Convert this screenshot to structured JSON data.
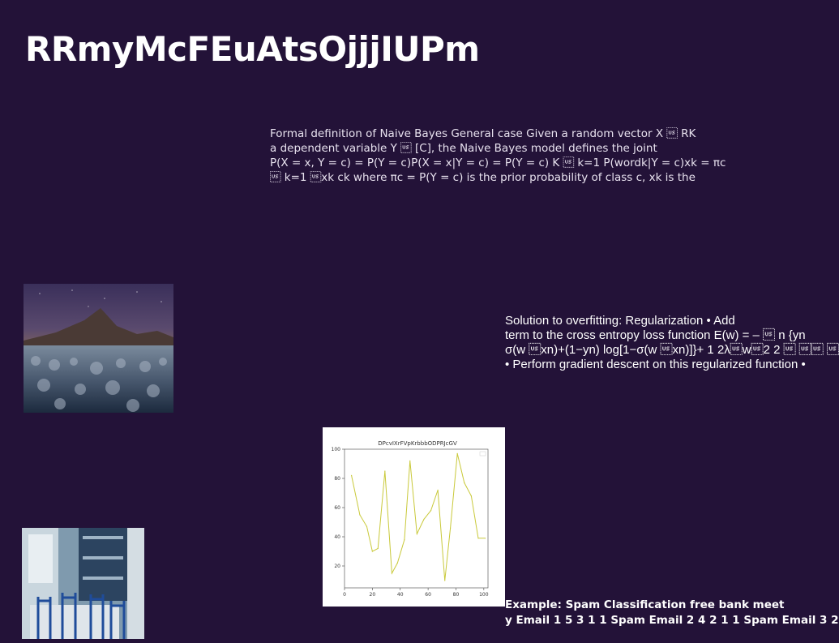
{
  "page": {
    "title": "RRmyMcFEuAtsOjjjIUPm"
  },
  "blocks": {
    "naive_bayes_lines": [
      "Formal definition of Naive Bayes General case Given a random vector X \u001f RK",
      "a dependent variable Y \u001f [C], the Naive Bayes model defines the joint",
      "P(X = x, Y = c) = P(Y = c)P(X = x|Y = c) = P(Y = c) K \u001f k=1 P(wordk|Y = c)xk = πc",
      "\u001f k=1 \u001fxk ck where πc = P(Y = c) is the prior probability of class c, xk is the"
    ],
    "regularization_lines": [
      "Solution to overfitting: Regularization • Add",
      "term to the cross entropy loss function E(w) = – \u001f n {yn",
      "σ(w \u001fxn)+(1−yn) log[1−σ(w \u001fxn)]}+ 1 2λ\u001fw\u001f2 2 \u001f \u001f\u001f \u001f",
      "• Perform gradient descent on this regularized function •"
    ],
    "spam_lines": [
      "Example: Spam Classification free bank meet",
      "y Email 1 5 3 1 1 Spam Email 2 4 2 1 1 Spam Email 3 2"
    ]
  },
  "images": {
    "mountain": "night-sky-mountain-forest-photo",
    "kitchen": "blue-chairs-kitchen-photo"
  },
  "chart_data": {
    "type": "line",
    "title": "DPcvIXrFVpKrbbbODPRJcGV",
    "x": [
      5,
      11,
      16,
      20,
      24,
      29,
      34,
      38,
      43,
      47,
      52,
      57,
      62,
      67,
      72,
      76,
      81,
      86,
      91,
      96,
      101
    ],
    "series": [
      {
        "values": [
          82,
          55,
          47,
          30,
          32,
          85,
          15,
          22,
          38,
          92,
          42,
          52,
          58,
          72,
          10,
          46,
          97,
          77,
          68,
          39,
          39
        ],
        "color": "#c9c93a"
      }
    ],
    "x_ticks": [
      "0",
      "20",
      "40",
      "60",
      "80",
      "100"
    ],
    "y_ticks": [
      "20",
      "40",
      "60",
      "80",
      "100"
    ],
    "xlim": [
      0,
      103
    ],
    "ylim": [
      5,
      100
    ],
    "grid": false,
    "legend": "top-right"
  }
}
